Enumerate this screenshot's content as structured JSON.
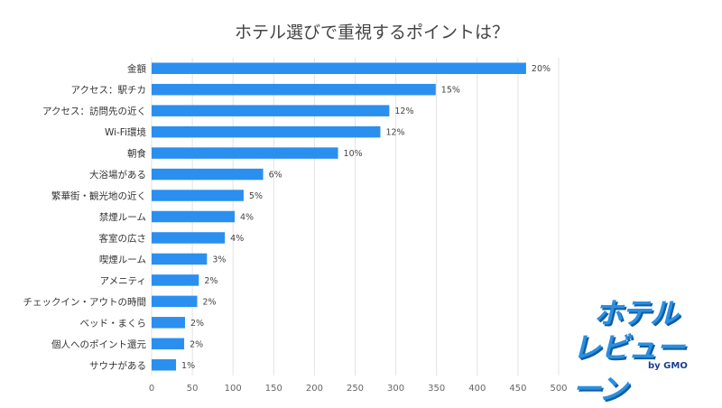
{
  "chart_data": {
    "type": "bar",
    "orientation": "horizontal",
    "title": "ホテル選びで重視するポイントは？",
    "categories": [
      "金額",
      "アクセス：駅チカ",
      "アクセス：訪問先の近く",
      "Wi-Fi環境",
      "朝食",
      "大浴場がある",
      "繁華街・観光地の近く",
      "禁煙ルーム",
      "客室の広さ",
      "喫煙ルーム",
      "アメニティ",
      "チェックイン・アウトの時間",
      "ベッド・まくら",
      "個人へのポイント還元",
      "サウナがある"
    ],
    "values": [
      460,
      349,
      292,
      281,
      229,
      137,
      113,
      102,
      90,
      68,
      58,
      56,
      41,
      40,
      30
    ],
    "labels": [
      "20%",
      "15%",
      "12%",
      "12%",
      "10%",
      "6%",
      "5%",
      "4%",
      "4%",
      "3%",
      "2%",
      "2%",
      "2%",
      "2%",
      "1%"
    ],
    "xticks": [
      0,
      50,
      100,
      150,
      200,
      250,
      300,
      350,
      400,
      450,
      500
    ],
    "xlim": [
      0,
      500
    ],
    "grid": true,
    "bar_color": "#2b8ff0"
  },
  "logo": {
    "line1": "ホテル",
    "line2": "レビューーン",
    "by": "by GMO"
  }
}
